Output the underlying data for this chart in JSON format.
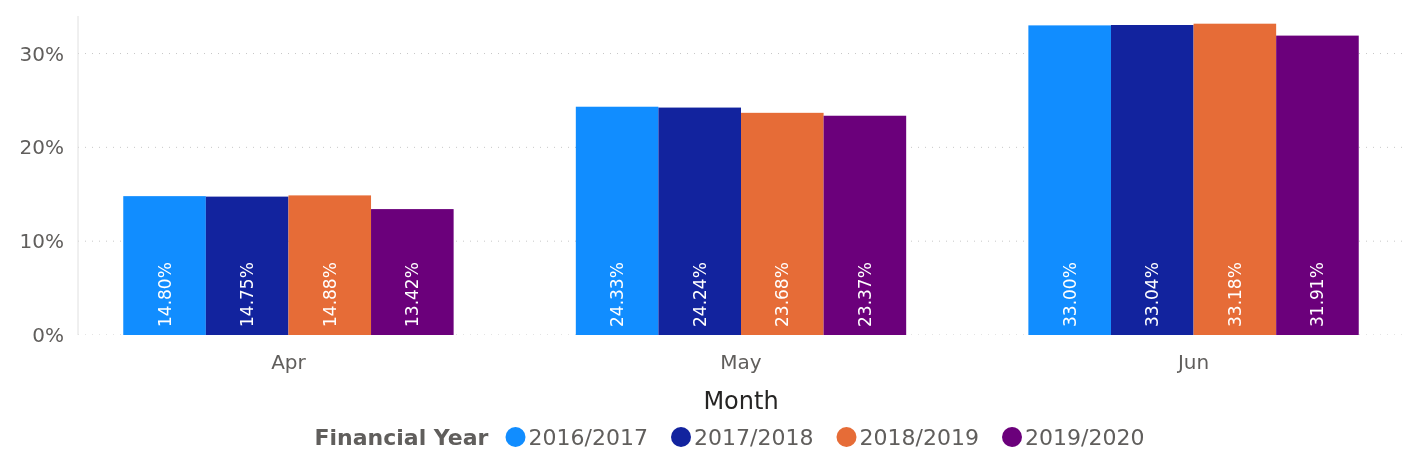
{
  "chart_data": {
    "type": "bar",
    "xlabel": "Month",
    "legend_title": "Financial Year",
    "categories": [
      "Apr",
      "May",
      "Jun"
    ],
    "series": [
      {
        "name": "2016/2017",
        "color": "#118dff",
        "values": [
          14.8,
          24.33,
          33.0
        ],
        "value_labels": [
          "14.80%",
          "24.33%",
          "33.00%"
        ]
      },
      {
        "name": "2017/2018",
        "color": "#12239e",
        "values": [
          14.75,
          24.24,
          33.04
        ],
        "value_labels": [
          "14.75%",
          "24.24%",
          "33.04%"
        ]
      },
      {
        "name": "2018/2019",
        "color": "#e66c37",
        "values": [
          14.88,
          23.68,
          33.18
        ],
        "value_labels": [
          "14.88%",
          "23.68%",
          "33.18%"
        ]
      },
      {
        "name": "2019/2020",
        "color": "#6b007b",
        "values": [
          13.42,
          23.37,
          31.91
        ],
        "value_labels": [
          "13.42%",
          "23.37%",
          "31.91%"
        ]
      }
    ],
    "ylim": [
      0,
      34
    ],
    "yticks": [
      {
        "value": 0,
        "label": "0%"
      },
      {
        "value": 10,
        "label": "10%"
      },
      {
        "value": 20,
        "label": "20%"
      },
      {
        "value": 30,
        "label": "30%"
      }
    ],
    "grid": "y",
    "legend": "bottom"
  }
}
